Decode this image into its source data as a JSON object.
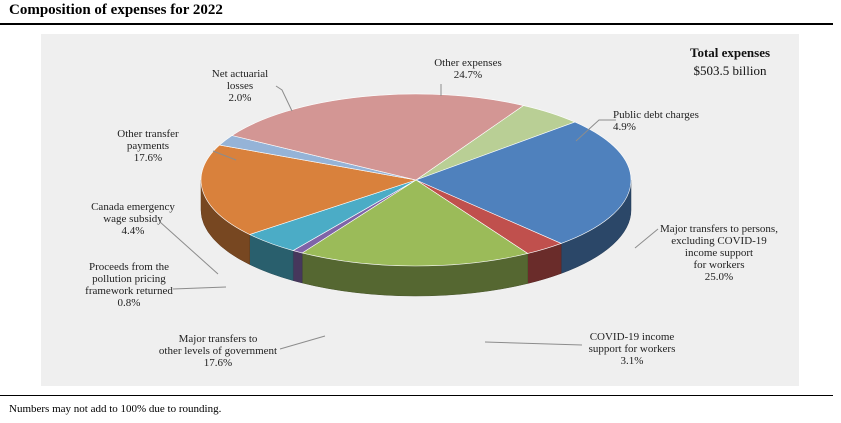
{
  "title": "Composition of expenses for 2022",
  "footnote": "Numbers may not add to 100% due to rounding.",
  "chart_data": {
    "type": "pie",
    "annotation": {
      "heading": "Total expenses",
      "value": "$503.5 billion"
    },
    "slices": [
      {
        "label": [
          "Public debt charges"
        ],
        "value": 4.9,
        "value_label": "4.9%",
        "color": "#b9cf95"
      },
      {
        "label": [
          "Major transfers to persons,",
          "excluding COVID-19",
          "income support",
          "for workers"
        ],
        "value": 25.0,
        "value_label": "25.0%",
        "color": "#4f81bd"
      },
      {
        "label": [
          "COVID-19 income",
          "support for workers"
        ],
        "value": 3.1,
        "value_label": "3.1%",
        "color": "#c0504d"
      },
      {
        "label": [
          "Major transfers to",
          "other levels of government"
        ],
        "value": 17.6,
        "value_label": "17.6%",
        "color": "#9bbb59"
      },
      {
        "label": [
          "Proceeds from the",
          "pollution pricing",
          "framework returned"
        ],
        "value": 0.8,
        "value_label": "0.8%",
        "color": "#7f64a8"
      },
      {
        "label": [
          "Canada emergency",
          "wage subsidy"
        ],
        "value": 4.4,
        "value_label": "4.4%",
        "color": "#4bacc6"
      },
      {
        "label": [
          "Other transfer",
          "payments"
        ],
        "value": 17.6,
        "value_label": "17.6%",
        "color": "#d9813c"
      },
      {
        "label": [
          "Net actuarial",
          "losses"
        ],
        "value": 2.0,
        "value_label": "2.0%",
        "color": "#95b3d7"
      },
      {
        "label": [
          "Other expenses"
        ],
        "value": 24.7,
        "value_label": "24.7%",
        "color": "#d39694"
      }
    ]
  }
}
